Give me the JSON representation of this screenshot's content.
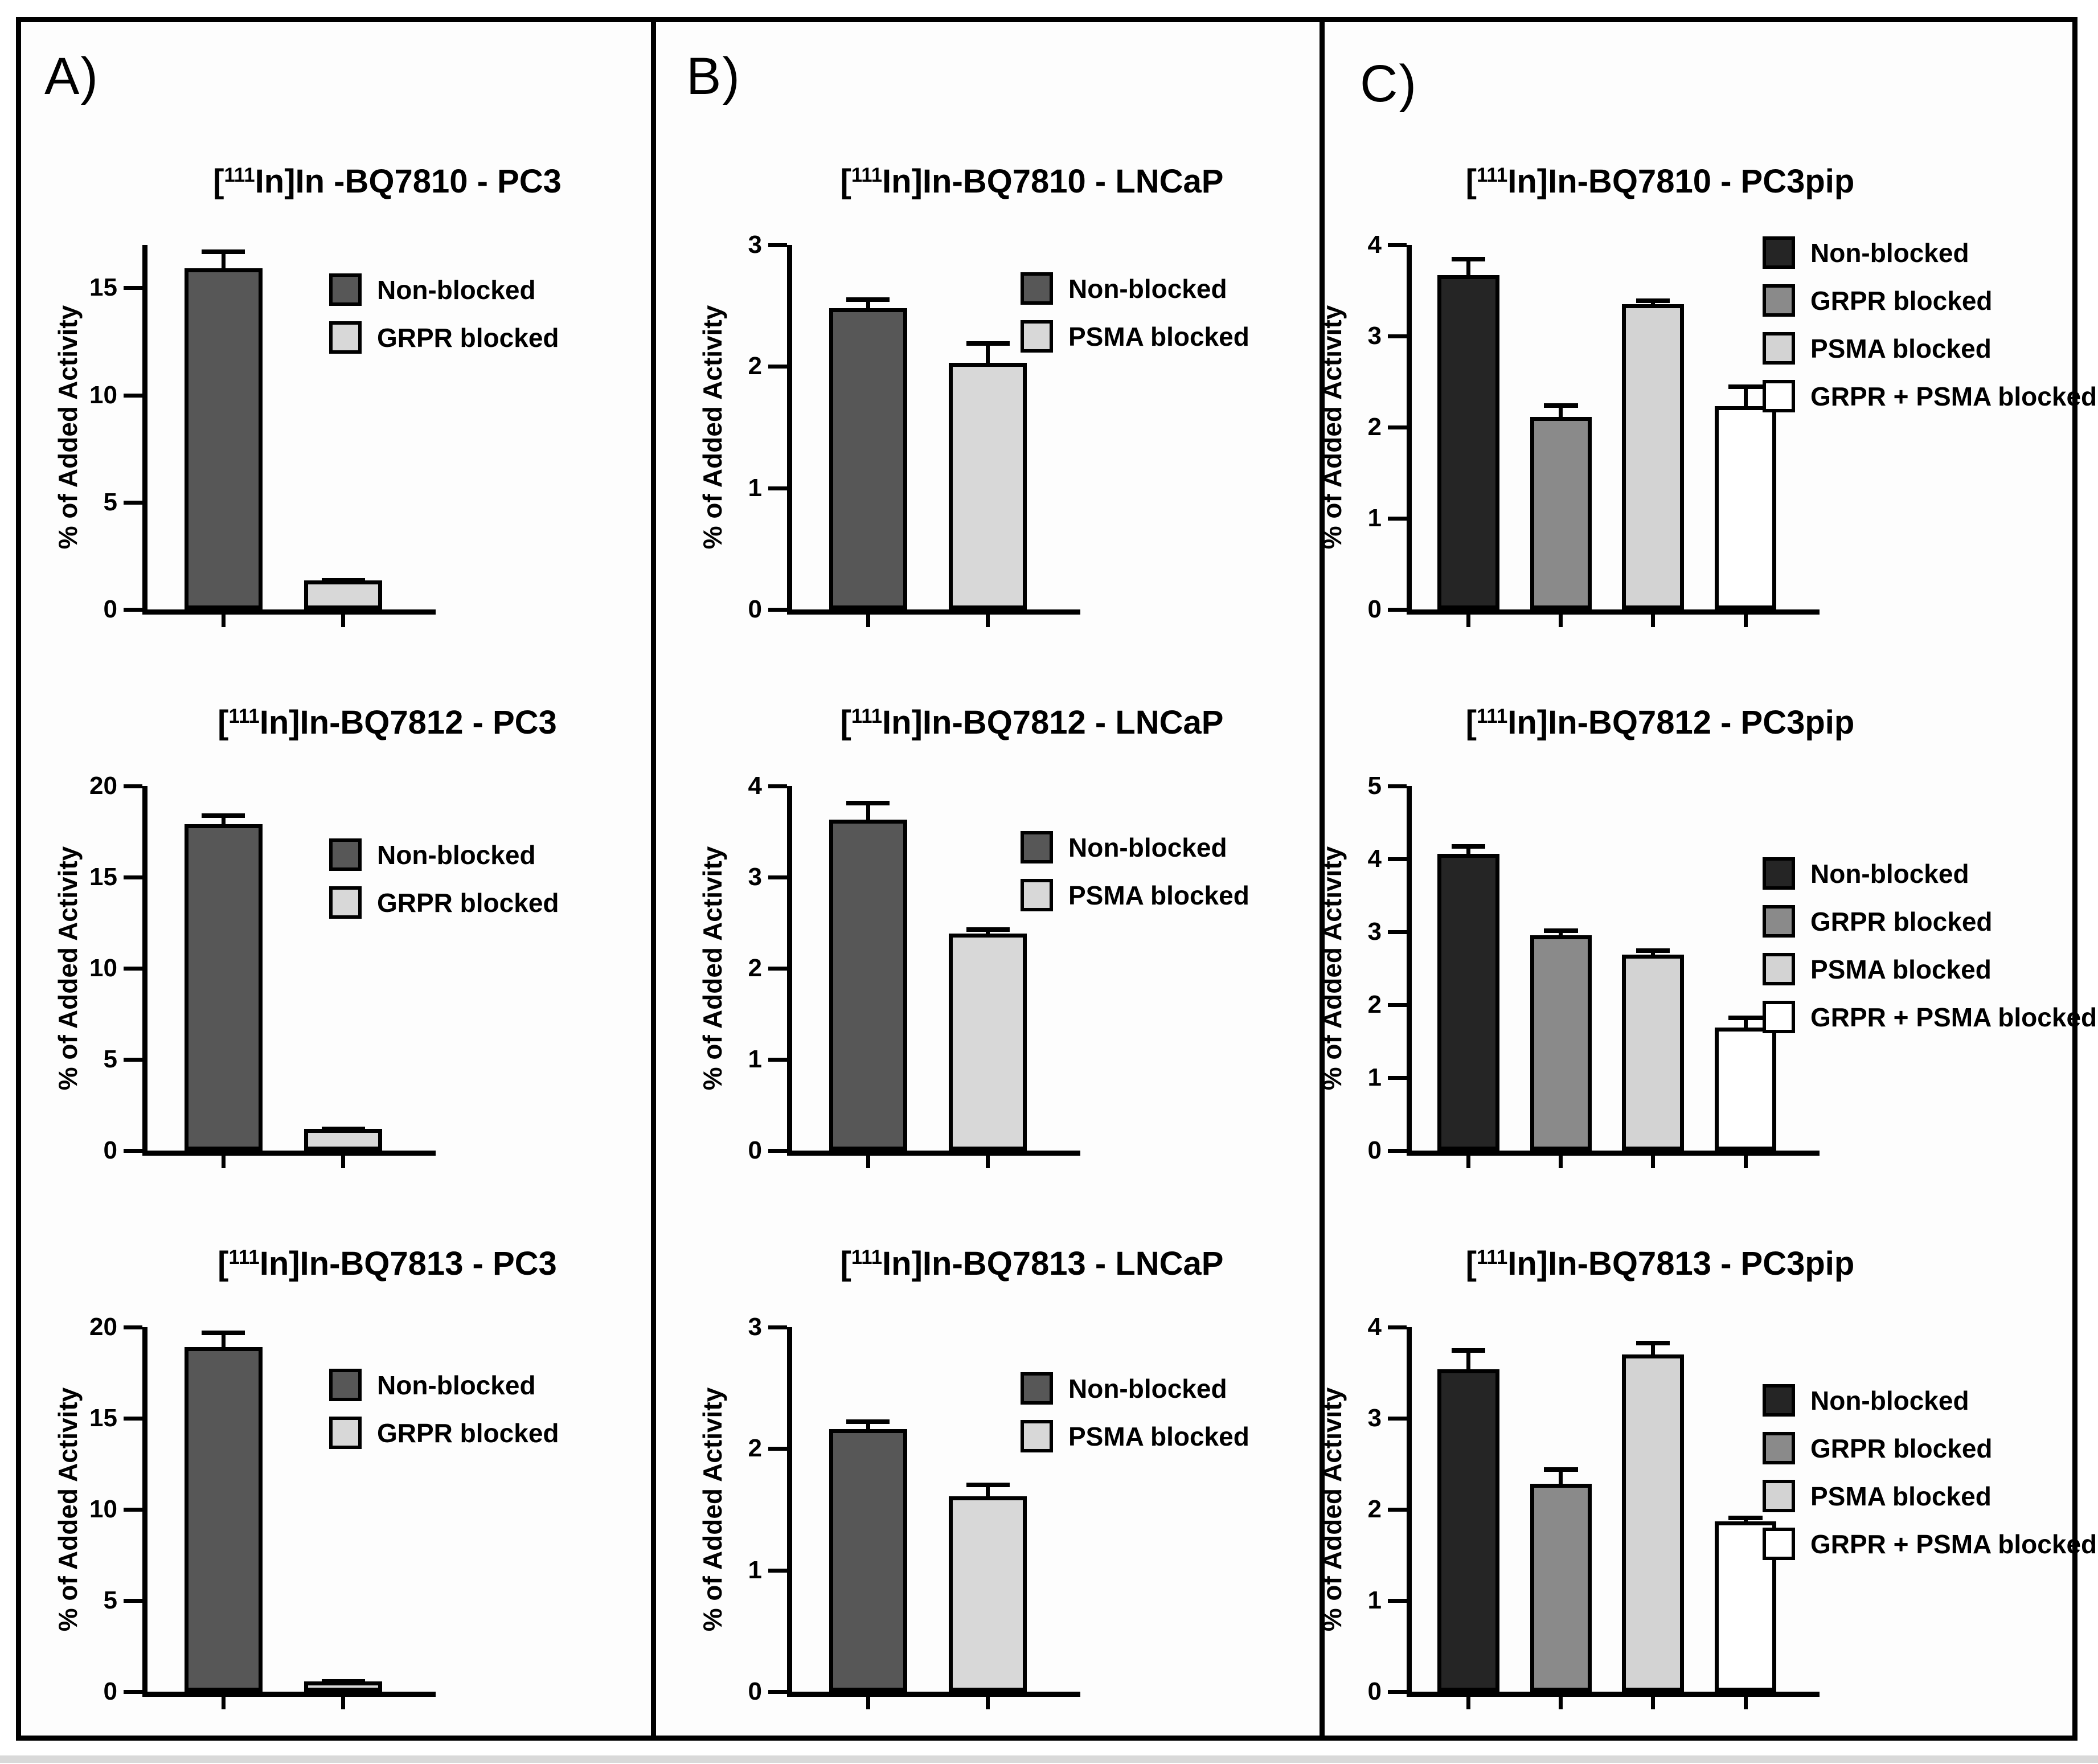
{
  "figure": {
    "panel_labels": [
      "A)",
      "B)",
      "C)"
    ],
    "ylabel": "% of Added Activity"
  },
  "palette": {
    "dark": "#575757",
    "light": "#d8d8d8",
    "near_black": "#252525",
    "mid_gray": "#8a8a8a",
    "light_gray": "#d3d3d3",
    "white": "#ffffff"
  },
  "chart_data": [
    {
      "type": "bar",
      "panel": "A",
      "title": {
        "pre": "[",
        "sup": "111",
        "post": "In]In -BQ7810 - PC3"
      },
      "ylabel": "% of Added Activity",
      "ylim": [
        0,
        17
      ],
      "yticks": [
        0,
        5,
        10,
        15
      ],
      "grid": false,
      "categories": [
        "Non-blocked",
        "GRPR blocked"
      ],
      "values": [
        15.9,
        1.35
      ],
      "errors": [
        0.9,
        0.1
      ],
      "bar_colors": [
        "dark",
        "light"
      ],
      "legend": [
        {
          "label": "Non-blocked",
          "color": "dark"
        },
        {
          "label": "GRPR blocked",
          "color": "light"
        }
      ]
    },
    {
      "type": "bar",
      "panel": "A",
      "title": {
        "pre": "[",
        "sup": "111",
        "post": "In]In-BQ7812 - PC3"
      },
      "ylabel": "% of Added Activity",
      "ylim": [
        0,
        20
      ],
      "yticks": [
        0,
        5,
        10,
        15,
        20
      ],
      "grid": false,
      "categories": [
        "Non-blocked",
        "GRPR blocked"
      ],
      "values": [
        17.9,
        1.2
      ],
      "errors": [
        0.6,
        0.1
      ],
      "bar_colors": [
        "dark",
        "light"
      ],
      "legend": [
        {
          "label": "Non-blocked",
          "color": "dark"
        },
        {
          "label": "GRPR blocked",
          "color": "light"
        }
      ]
    },
    {
      "type": "bar",
      "panel": "A",
      "title": {
        "pre": "[",
        "sup": "111",
        "post": "In]In-BQ7813 - PC3"
      },
      "ylabel": "% of Added Activity",
      "ylim": [
        0,
        20
      ],
      "yticks": [
        0,
        5,
        10,
        15,
        20
      ],
      "grid": false,
      "categories": [
        "Non-blocked",
        "GRPR blocked"
      ],
      "values": [
        18.9,
        0.55
      ],
      "errors": [
        0.9,
        0.13
      ],
      "bar_colors": [
        "dark",
        "light"
      ],
      "legend": [
        {
          "label": "Non-blocked",
          "color": "dark"
        },
        {
          "label": "GRPR blocked",
          "color": "light"
        }
      ]
    },
    {
      "type": "bar",
      "panel": "B",
      "title": {
        "pre": "[",
        "sup": "111",
        "post": "In]In-BQ7810 - LNCaP"
      },
      "ylabel": "% of Added Activity",
      "ylim": [
        0,
        3
      ],
      "yticks": [
        0,
        1,
        2,
        3
      ],
      "grid": false,
      "categories": [
        "Non-blocked",
        "PSMA blocked"
      ],
      "values": [
        2.48,
        2.03
      ],
      "errors": [
        0.09,
        0.18
      ],
      "bar_colors": [
        "dark",
        "light"
      ],
      "legend": [
        {
          "label": "Non-blocked",
          "color": "dark"
        },
        {
          "label": "PSMA blocked",
          "color": "light"
        }
      ]
    },
    {
      "type": "bar",
      "panel": "B",
      "title": {
        "pre": "[",
        "sup": "111",
        "post": "In]In-BQ7812 - LNCaP"
      },
      "ylabel": "% of Added Activity",
      "ylim": [
        0,
        4
      ],
      "yticks": [
        0,
        1,
        2,
        3,
        4
      ],
      "grid": false,
      "categories": [
        "Non-blocked",
        "PSMA blocked"
      ],
      "values": [
        3.63,
        2.38
      ],
      "errors": [
        0.21,
        0.07
      ],
      "bar_colors": [
        "dark",
        "light"
      ],
      "legend": [
        {
          "label": "Non-blocked",
          "color": "dark"
        },
        {
          "label": "PSMA blocked",
          "color": "light"
        }
      ]
    },
    {
      "type": "bar",
      "panel": "B",
      "title": {
        "pre": "[",
        "sup": "111",
        "post": "In]In-BQ7813 - LNCaP"
      },
      "ylabel": "% of Added Activity",
      "ylim": [
        0,
        3
      ],
      "yticks": [
        0,
        1,
        2,
        3
      ],
      "grid": false,
      "categories": [
        "Non-blocked",
        "PSMA blocked"
      ],
      "values": [
        2.16,
        1.61
      ],
      "errors": [
        0.08,
        0.11
      ],
      "bar_colors": [
        "dark",
        "light"
      ],
      "legend": [
        {
          "label": "Non-blocked",
          "color": "dark"
        },
        {
          "label": "PSMA blocked",
          "color": "light"
        }
      ]
    },
    {
      "type": "bar",
      "panel": "C",
      "title": {
        "pre": "[",
        "sup": "111",
        "post": "In]In-BQ7810 - PC3pip"
      },
      "ylabel": "% of Added Activity",
      "ylim": [
        0,
        4
      ],
      "yticks": [
        0,
        1,
        2,
        3,
        4
      ],
      "grid": false,
      "categories": [
        "Non-blocked",
        "GRPR blocked",
        "PSMA blocked",
        "GRPR + PSMA blocked"
      ],
      "values": [
        3.67,
        2.11,
        3.35,
        2.23
      ],
      "errors": [
        0.2,
        0.15,
        0.06,
        0.24
      ],
      "bar_colors": [
        "near_black",
        "mid_gray",
        "light_gray",
        "white"
      ],
      "legend": [
        {
          "label": "Non-blocked",
          "color": "near_black"
        },
        {
          "label": "GRPR blocked",
          "color": "mid_gray"
        },
        {
          "label": "PSMA blocked",
          "color": "light_gray"
        },
        {
          "label": "GRPR + PSMA blocked",
          "color": "white"
        }
      ]
    },
    {
      "type": "bar",
      "panel": "C",
      "title": {
        "pre": "[",
        "sup": "111",
        "post": "In]In-BQ7812 - PC3pip"
      },
      "ylabel": "% of Added Activity",
      "ylim": [
        0,
        5
      ],
      "yticks": [
        0,
        1,
        2,
        3,
        4,
        5
      ],
      "grid": false,
      "categories": [
        "Non-blocked",
        "GRPR blocked",
        "PSMA blocked",
        "GRPR + PSMA blocked"
      ],
      "values": [
        4.07,
        2.95,
        2.69,
        1.69
      ],
      "errors": [
        0.13,
        0.1,
        0.08,
        0.16
      ],
      "bar_colors": [
        "near_black",
        "mid_gray",
        "light_gray",
        "white"
      ],
      "legend": [
        {
          "label": "Non-blocked",
          "color": "near_black"
        },
        {
          "label": "GRPR blocked",
          "color": "mid_gray"
        },
        {
          "label": "PSMA blocked",
          "color": "light_gray"
        },
        {
          "label": "GRPR + PSMA blocked",
          "color": "white"
        }
      ]
    },
    {
      "type": "bar",
      "panel": "C",
      "title": {
        "pre": "[",
        "sup": "111",
        "post": "In]In-BQ7813 - PC3pip"
      },
      "ylabel": "% of Added Activity",
      "ylim": [
        0,
        4
      ],
      "yticks": [
        0,
        1,
        2,
        3,
        4
      ],
      "grid": false,
      "categories": [
        "Non-blocked",
        "GRPR blocked",
        "PSMA blocked",
        "GRPR + PSMA blocked"
      ],
      "values": [
        3.54,
        2.28,
        3.7,
        1.87
      ],
      "errors": [
        0.23,
        0.18,
        0.15,
        0.06
      ],
      "bar_colors": [
        "near_black",
        "mid_gray",
        "light_gray",
        "white"
      ],
      "legend": [
        {
          "label": "Non-blocked",
          "color": "near_black"
        },
        {
          "label": "GRPR blocked",
          "color": "mid_gray"
        },
        {
          "label": "PSMA blocked",
          "color": "light_gray"
        },
        {
          "label": "GRPR + PSMA blocked",
          "color": "white"
        }
      ]
    }
  ]
}
